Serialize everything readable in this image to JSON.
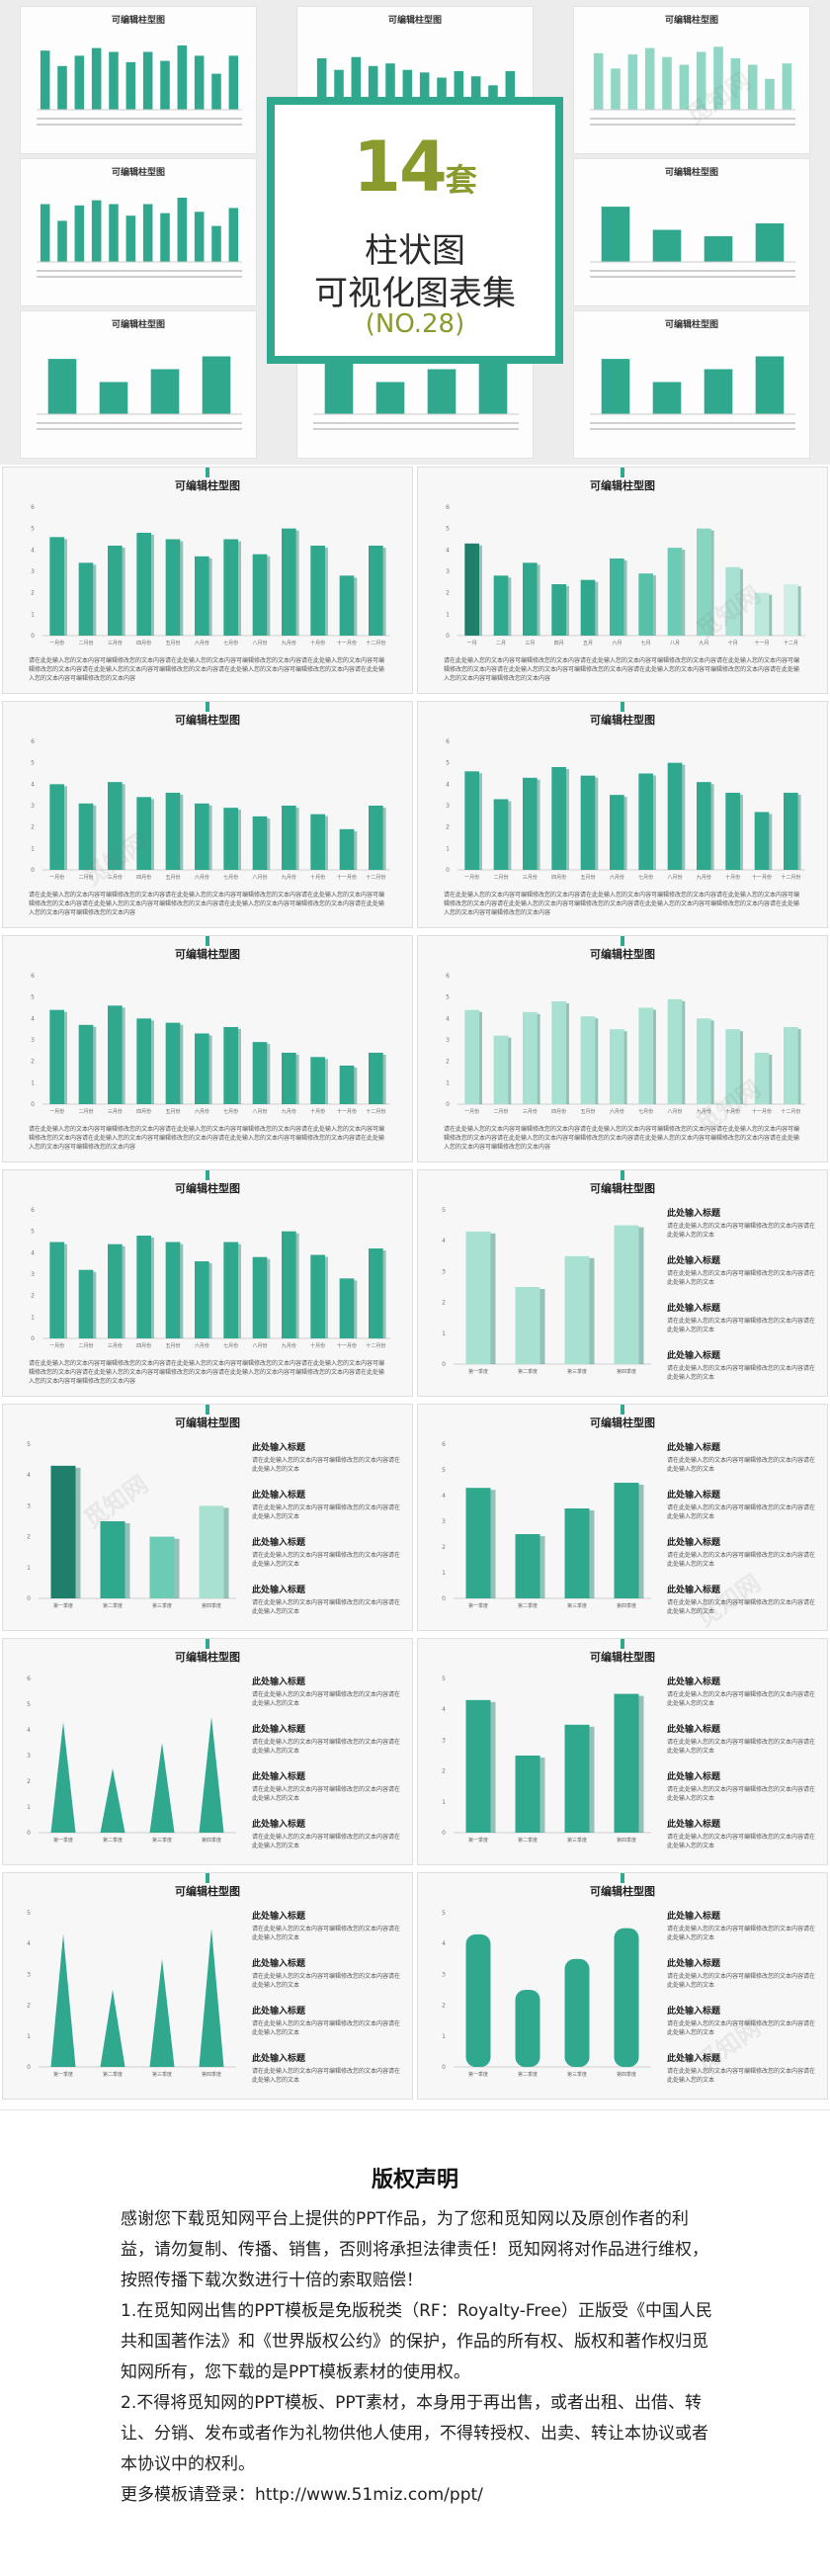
{
  "cover": {
    "count": "14",
    "unit": "套",
    "subtitle_1": "柱状图",
    "subtitle_2": "可视化图表集",
    "code": "(NO.28)",
    "mini_title": "可编辑柱型图",
    "mini_side_heading": "此处输入标题"
  },
  "slide_title": "可编辑柱型图",
  "desc_text": "请在此处输入您的文本内容可编辑修改您的文本内容请在此处输入您的文本内容可编辑修改您的文本内容请在此处输入您的文本内容可编辑修改您的文本内容请在此处输入您的文本内容可编辑修改您的文本内容请在此处输入您的文本内容可编辑修改您的文本内容请在此处输入您的文本内容可编辑修改您的文本内容",
  "side_heading": "此处输入标题",
  "side_text": "请在此处输入您的文本内容可编辑修改您的文本内容请在此处输入您的文本",
  "chart_data": [
    {
      "type": "bar",
      "title": "可编辑柱型图",
      "categories": [
        "一月份",
        "二月份",
        "三月份",
        "四月份",
        "五月份",
        "六月份",
        "七月份",
        "八月份",
        "九月份",
        "十月份",
        "十一月份",
        "十二月份"
      ],
      "values": [
        4.6,
        3.4,
        4.2,
        4.8,
        4.5,
        3.7,
        4.5,
        3.8,
        5.0,
        4.2,
        2.8,
        4.2
      ],
      "ylim": [
        0,
        6
      ]
    },
    {
      "type": "bar",
      "title": "可编辑柱型图",
      "categories": [
        "一月",
        "二月",
        "三月",
        "四月",
        "五月",
        "六月",
        "七月",
        "八月",
        "九月",
        "十月",
        "十一月",
        "十二月"
      ],
      "values": [
        4.3,
        2.8,
        3.4,
        2.4,
        2.6,
        3.6,
        2.9,
        4.1,
        5.0,
        3.2,
        2.0,
        2.4
      ],
      "ylim": [
        0,
        6
      ]
    },
    {
      "type": "bar",
      "title": "可编辑柱型图",
      "categories": [
        "一月份",
        "二月份",
        "三月份",
        "四月份",
        "五月份",
        "六月份",
        "七月份",
        "八月份",
        "九月份",
        "十月份",
        "十一月份",
        "十二月份"
      ],
      "values": [
        4.0,
        3.1,
        4.1,
        3.4,
        3.6,
        3.1,
        2.9,
        2.5,
        3.0,
        2.6,
        1.9,
        3.0
      ],
      "ylim": [
        0,
        6
      ]
    },
    {
      "type": "bar",
      "title": "可编辑柱型图",
      "categories": [
        "一月份",
        "二月份",
        "三月份",
        "四月份",
        "五月份",
        "六月份",
        "七月份",
        "八月份",
        "九月份",
        "十月份",
        "十一月份",
        "十二月份"
      ],
      "values": [
        4.6,
        3.3,
        4.3,
        4.8,
        4.4,
        3.5,
        4.5,
        5.0,
        4.1,
        3.6,
        2.7,
        3.6
      ],
      "ylim": [
        0,
        6
      ]
    },
    {
      "type": "bar",
      "title": "可编辑柱型图",
      "categories": [
        "一月份",
        "二月份",
        "三月份",
        "四月份",
        "五月份",
        "六月份",
        "七月份",
        "八月份",
        "九月份",
        "十月份",
        "十一月份",
        "十二月份"
      ],
      "values": [
        4.4,
        3.7,
        4.6,
        4.0,
        3.8,
        3.3,
        3.6,
        2.9,
        2.4,
        2.2,
        1.8,
        2.4
      ],
      "ylim": [
        0,
        6
      ]
    },
    {
      "type": "bar",
      "title": "可编辑柱型图",
      "categories": [
        "一月份",
        "二月份",
        "三月份",
        "四月份",
        "五月份",
        "六月份",
        "七月份",
        "八月份",
        "九月份",
        "十月份",
        "十一月份",
        "十二月份"
      ],
      "values": [
        4.4,
        3.2,
        4.3,
        4.8,
        4.1,
        3.5,
        4.5,
        4.9,
        4.0,
        3.5,
        2.4,
        3.6
      ],
      "ylim": [
        0,
        6
      ]
    },
    {
      "type": "bar",
      "title": "可编辑柱型图",
      "categories": [
        "一月份",
        "二月份",
        "三月份",
        "四月份",
        "五月份",
        "六月份",
        "七月份",
        "八月份",
        "九月份",
        "十月份",
        "十一月份",
        "十二月份"
      ],
      "values": [
        4.5,
        3.2,
        4.4,
        4.8,
        4.5,
        3.6,
        4.5,
        3.8,
        5.0,
        3.9,
        2.8,
        4.2
      ],
      "ylim": [
        0,
        6
      ]
    },
    {
      "type": "bar",
      "title": "可编辑柱型图",
      "categories": [
        "第一季度",
        "第二季度",
        "第三季度",
        "第四季度"
      ],
      "values": [
        4.3,
        2.5,
        3.5,
        4.5
      ],
      "ylim": [
        0,
        5
      ]
    },
    {
      "type": "bar",
      "title": "可编辑柱型图",
      "categories": [
        "第一季度",
        "第二季度",
        "第三季度",
        "第四季度"
      ],
      "values": [
        4.3,
        2.5,
        2.0,
        3.0
      ],
      "ylim": [
        0,
        5
      ]
    },
    {
      "type": "bar",
      "title": "可编辑柱型图",
      "categories": [
        "第一季度",
        "第二季度",
        "第三季度",
        "第四季度"
      ],
      "values": [
        4.3,
        2.5,
        3.5,
        4.5
      ],
      "ylim": [
        0,
        6
      ]
    },
    {
      "type": "bar",
      "title": "可编辑柱型图",
      "categories": [
        "第一季度",
        "第二季度",
        "第三季度",
        "第四季度"
      ],
      "values": [
        4.3,
        2.5,
        3.5,
        4.5
      ],
      "ylim": [
        0,
        6
      ]
    },
    {
      "type": "bar",
      "title": "可编辑柱型图",
      "categories": [
        "第一季度",
        "第二季度",
        "第三季度",
        "第四季度"
      ],
      "values": [
        4.3,
        2.5,
        3.5,
        4.5
      ],
      "ylim": [
        0,
        5
      ]
    },
    {
      "type": "bar",
      "title": "可编辑柱型图",
      "categories": [
        "第一季度",
        "第二季度",
        "第三季度",
        "第四季度"
      ],
      "values": [
        4.3,
        2.5,
        3.5,
        4.5
      ],
      "ylim": [
        0,
        5
      ]
    },
    {
      "type": "bar",
      "title": "可编辑柱型图",
      "categories": [
        "第一季度",
        "第二季度",
        "第三季度",
        "第四季度"
      ],
      "values": [
        4.3,
        2.5,
        3.5,
        4.5
      ],
      "ylim": [
        0,
        5
      ]
    }
  ],
  "notice": {
    "title": "版权声明",
    "paragraphs": [
      "感谢您下载觅知网平台上提供的PPT作品，为了您和觅知网以及原创作者的利益，请勿复制、传播、销售，否则将承担法律责任！觅知网将对作品进行维权，按照传播下载次数进行十倍的索取赔偿！",
      "1.在觅知网出售的PPT模板是免版税类（RF：Royalty-Free）正版受《中国人民共和国著作法》和《世界版权公约》的保护，作品的所有权、版权和著作权归觅知网所有，您下载的是PPT模板素材的使用权。",
      "2.不得将觅知网的PPT模板、PPT素材，本身用于再出售，或者出租、出借、转让、分销、发布或者作为礼物供他人使用，不得转授权、出卖、转让本协议或者本协议中的权利。",
      "更多模板请登录：http://www.51miz.com/ppt/"
    ]
  },
  "watermark": "觅知网",
  "colors": {
    "accent": "#2fa88e",
    "dark": "#1f7f6a",
    "light": "#a8e0d2",
    "olive": "#8a9a2d"
  }
}
